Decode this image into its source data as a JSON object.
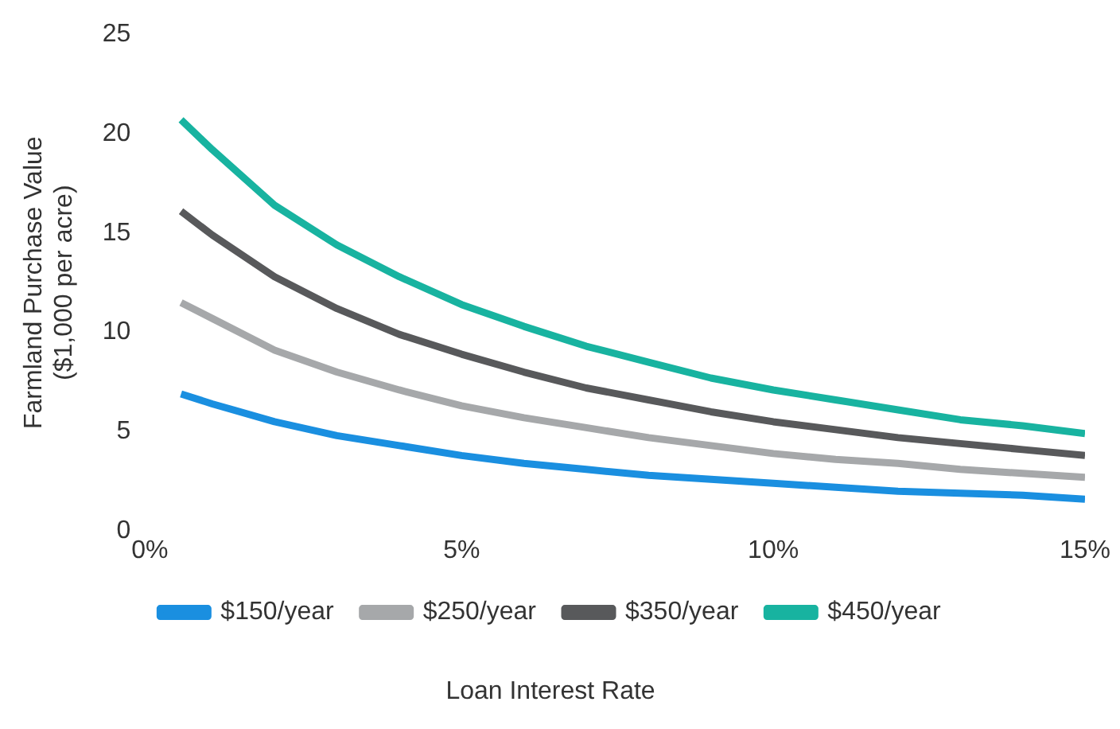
{
  "chart_data": {
    "type": "line",
    "xlabel": "Loan Interest Rate",
    "ylabel": "Farmland Purchase Value\n($1,000 per acre)",
    "x": [
      0.5,
      1,
      2,
      3,
      4,
      5,
      6,
      7,
      8,
      9,
      10,
      11,
      12,
      13,
      14,
      15
    ],
    "series": [
      {
        "name": "$150/year",
        "color": "#1a8fe0",
        "values": [
          6.9,
          6.4,
          5.5,
          4.8,
          4.3,
          3.8,
          3.4,
          3.1,
          2.8,
          2.6,
          2.4,
          2.2,
          2.0,
          1.9,
          1.8,
          1.6
        ]
      },
      {
        "name": "$250/year",
        "color": "#a6a8aa",
        "values": [
          11.5,
          10.7,
          9.1,
          8.0,
          7.1,
          6.3,
          5.7,
          5.2,
          4.7,
          4.3,
          3.9,
          3.6,
          3.4,
          3.1,
          2.9,
          2.7
        ]
      },
      {
        "name": "$350/year",
        "color": "#58595b",
        "values": [
          16.1,
          14.9,
          12.8,
          11.2,
          9.9,
          8.9,
          8.0,
          7.2,
          6.6,
          6.0,
          5.5,
          5.1,
          4.7,
          4.4,
          4.1,
          3.8
        ]
      },
      {
        "name": "$450/year",
        "color": "#18b3a0",
        "values": [
          20.7,
          19.2,
          16.4,
          14.4,
          12.8,
          11.4,
          10.3,
          9.3,
          8.5,
          7.7,
          7.1,
          6.6,
          6.1,
          5.6,
          5.3,
          4.9
        ]
      }
    ],
    "xlim": [
      0,
      15
    ],
    "xticks": [
      {
        "value": 0,
        "label": "0%"
      },
      {
        "value": 5,
        "label": "5%"
      },
      {
        "value": 10,
        "label": "10%"
      },
      {
        "value": 15,
        "label": "15%"
      }
    ],
    "ylim": [
      0,
      25
    ],
    "yticks": [
      0,
      5,
      10,
      15,
      20,
      25
    ],
    "grid": false,
    "legend": "bottom",
    "marker": "none",
    "line_style": "solid"
  }
}
